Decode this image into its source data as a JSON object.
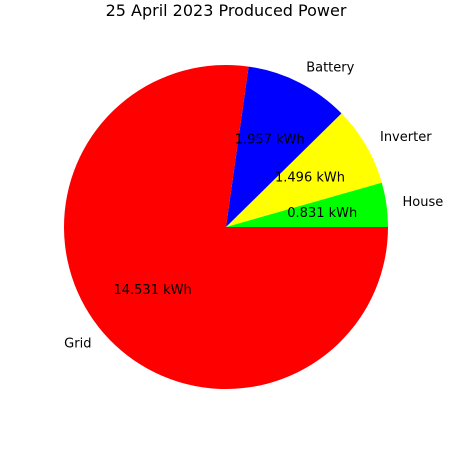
{
  "chart_data": {
    "type": "pie",
    "title": "25 April 2023 Produced Power",
    "slices": [
      {
        "label": "House",
        "value": 0.831,
        "value_label": "0.831 kWh",
        "color": "#00ff00"
      },
      {
        "label": "Inverter",
        "value": 1.496,
        "value_label": "1.496 kWh",
        "color": "#ffff00"
      },
      {
        "label": "Battery",
        "value": 1.957,
        "value_label": "1.957 kWh",
        "color": "#0000ff"
      },
      {
        "label": "Grid",
        "value": 14.531,
        "value_label": "14.531 kWh",
        "color": "#ff0000"
      }
    ],
    "start_angle_deg": 0,
    "direction": "counterclockwise",
    "legend": "none"
  }
}
